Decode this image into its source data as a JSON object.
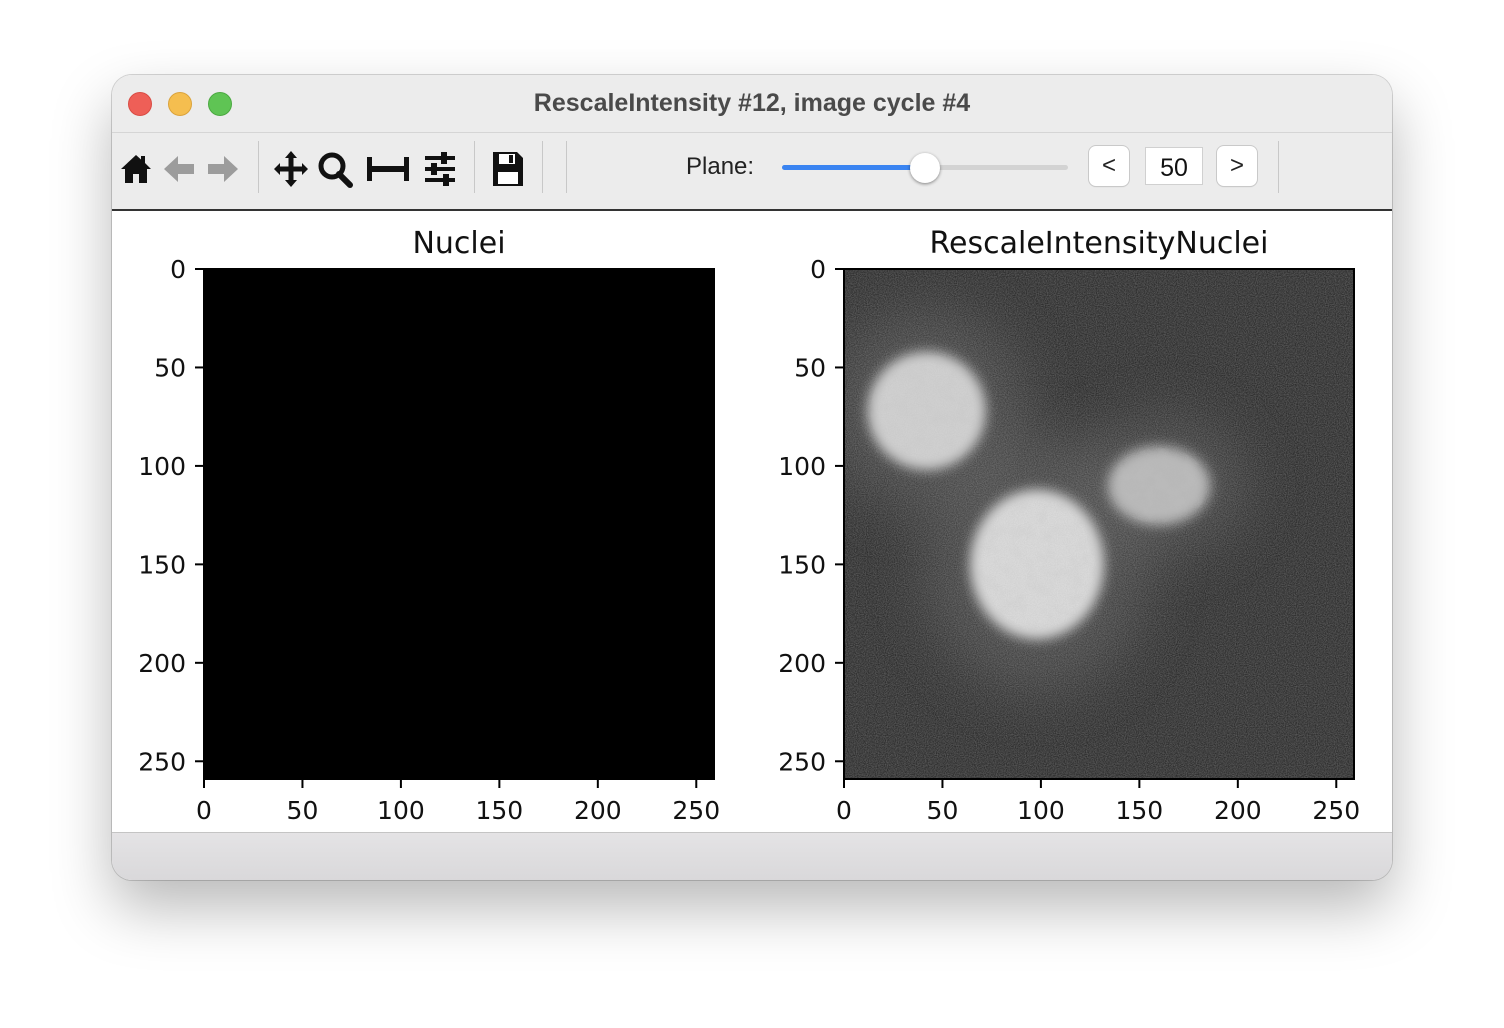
{
  "window": {
    "title": "RescaleIntensity #12, image cycle #4"
  },
  "toolbar": {
    "icons": [
      "home-icon",
      "back-arrow-icon",
      "forward-arrow-icon",
      "pan-move-icon",
      "zoom-magnifier-icon",
      "subplots-adjust-icon",
      "configure-sliders-icon",
      "save-floppy-icon"
    ],
    "plane_label": "Plane:",
    "plane_value": "50",
    "plane_slider_fraction": 0.5,
    "prev_label": "<",
    "next_label": ">",
    "slider_color": "#3a84f1"
  },
  "chart_data": [
    {
      "type": "heatmap",
      "title": "Nuclei",
      "xlim": [
        0,
        259
      ],
      "ylim": [
        259,
        0
      ],
      "xticks": [
        0,
        50,
        100,
        150,
        200,
        250
      ],
      "yticks": [
        0,
        50,
        100,
        150,
        200,
        250
      ],
      "xtick_labels": [
        "0",
        "50",
        "100",
        "150",
        "200",
        "250"
      ],
      "ytick_labels": [
        "0",
        "50",
        "100",
        "150",
        "200",
        "250"
      ],
      "colormap": "gray",
      "content": "all black (intensity 0)",
      "blobs": []
    },
    {
      "type": "heatmap",
      "title": "RescaleIntensityNuclei",
      "xlim": [
        0,
        259
      ],
      "ylim": [
        259,
        0
      ],
      "xticks": [
        0,
        50,
        100,
        150,
        200,
        250
      ],
      "yticks": [
        0,
        50,
        100,
        150,
        200,
        250
      ],
      "xtick_labels": [
        "0",
        "50",
        "100",
        "150",
        "200",
        "250"
      ],
      "ytick_labels": [
        "0",
        "50",
        "100",
        "150",
        "200",
        "250"
      ],
      "colormap": "gray",
      "content": "three bright nuclei on dark noisy background",
      "blobs": [
        {
          "cx": 42,
          "cy": 72,
          "rx": 30,
          "ry": 30,
          "intensity": 0.82
        },
        {
          "cx": 98,
          "cy": 150,
          "rx": 34,
          "ry": 38,
          "intensity": 0.86
        },
        {
          "cx": 160,
          "cy": 110,
          "rx": 26,
          "ry": 20,
          "intensity": 0.72
        }
      ]
    }
  ]
}
